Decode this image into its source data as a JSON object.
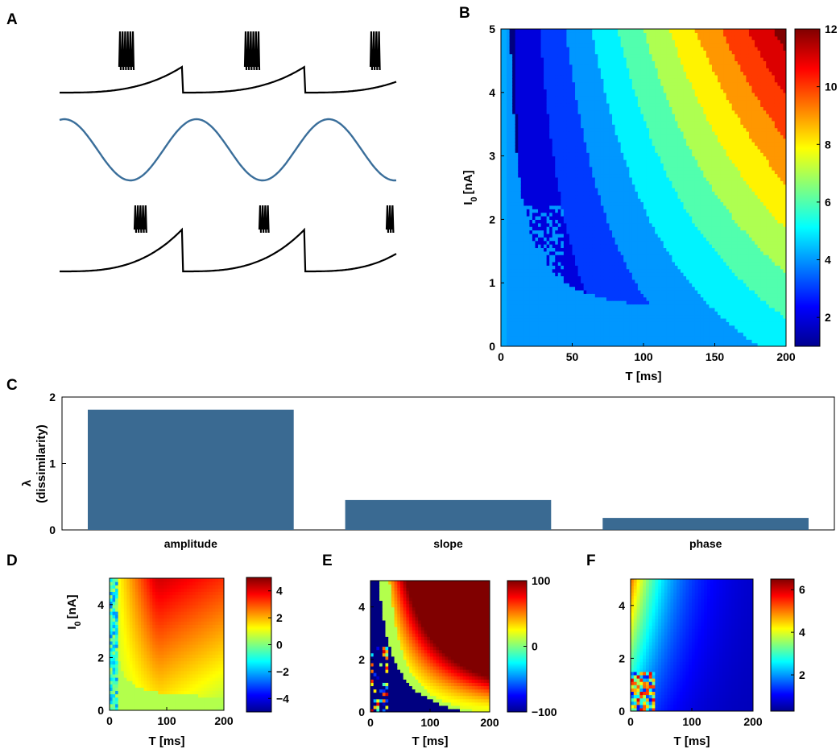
{
  "panels": {
    "a": "A",
    "b": "B",
    "c": "C",
    "d": "D",
    "e": "E",
    "f": "F"
  },
  "colors": {
    "trace": "#000000",
    "sine": "#3a6e9a",
    "bar": "#3a6a92"
  },
  "chart_data": [
    {
      "id": "A",
      "type": "line",
      "series": [
        {
          "values": "voltage trace (bursting)",
          "bursts": 3,
          "spikes_per_burst": [
            6,
            6,
            4
          ]
        },
        {
          "values": "sinusoidal input",
          "cycles": 2.75
        },
        {
          "values": "voltage trace (bursting)",
          "bursts": 3,
          "spikes_per_burst": [
            5,
            4,
            3
          ]
        }
      ]
    },
    {
      "id": "B",
      "type": "heatmap",
      "colormap": "jet",
      "xlabel": "T [ms]",
      "ylabel": "I",
      "ylabel_sub": "0",
      "ylabel_unit": "[nA]",
      "xlim": [
        0,
        200
      ],
      "ylim": [
        0,
        5
      ],
      "xticks": [
        "0",
        "50",
        "100",
        "150",
        "200"
      ],
      "yticks": [
        "0",
        "1",
        "2",
        "3",
        "4",
        "5"
      ],
      "clim": [
        1,
        12
      ],
      "cticks": [
        "2",
        "4",
        "6",
        "8",
        "10",
        "12"
      ]
    },
    {
      "id": "C",
      "type": "bar",
      "categories": [
        "amplitude",
        "slope",
        "phase"
      ],
      "values": [
        1.81,
        0.45,
        0.18
      ],
      "ylim": [
        0,
        2
      ],
      "yticks": [
        "0",
        "1",
        "2"
      ],
      "ylabel_line1": "λ",
      "ylabel_line2": "(dissimilarity)"
    },
    {
      "id": "D",
      "type": "heatmap",
      "colormap": "jet",
      "xlabel": "T [ms]",
      "ylabel": "I",
      "ylabel_sub": "0",
      "ylabel_unit": "[nA]",
      "xlim": [
        0,
        200
      ],
      "ylim": [
        0,
        5
      ],
      "xticks": [
        "0",
        "100",
        "200"
      ],
      "yticks": [
        "0",
        "2",
        "4"
      ],
      "clim": [
        -5,
        5
      ],
      "cticks": [
        "4",
        "2",
        "0",
        "−2",
        "−4"
      ]
    },
    {
      "id": "E",
      "type": "heatmap",
      "colormap": "jet",
      "xlabel": "T [ms]",
      "xlim": [
        0,
        200
      ],
      "ylim": [
        0,
        5
      ],
      "xticks": [
        "0",
        "100",
        "200"
      ],
      "yticks": [
        "0",
        "2",
        "4"
      ],
      "clim": [
        -100,
        100
      ],
      "cticks": [
        "100",
        "0",
        "−100"
      ]
    },
    {
      "id": "F",
      "type": "heatmap",
      "colormap": "jet",
      "xlabel": "T [ms]",
      "xlim": [
        0,
        200
      ],
      "ylim": [
        0,
        5
      ],
      "xticks": [
        "0",
        "100",
        "200"
      ],
      "yticks": [
        "0",
        "2",
        "4"
      ],
      "clim": [
        0.3,
        6.5
      ],
      "cticks": [
        "6",
        "4",
        "2"
      ]
    }
  ]
}
